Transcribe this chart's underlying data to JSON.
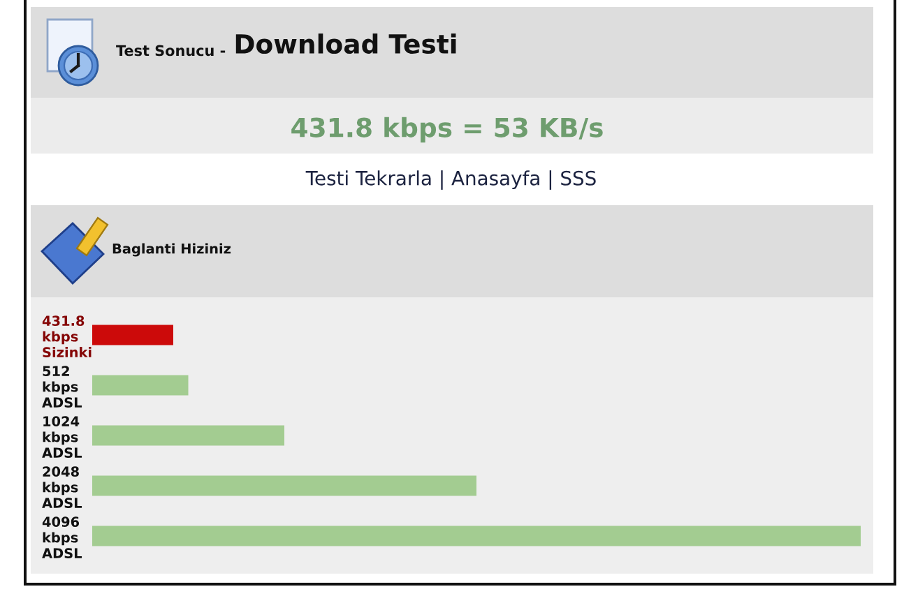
{
  "chart_data": {
    "type": "bar",
    "orientation": "horizontal",
    "title": "Download Testi",
    "subtitle": "Test Sonucu -",
    "annotations": [
      "431.8 kbps = 53 KB/s",
      "Testi Tekrarla | Anasayfa | SSS",
      "Baglanti Hiziniz"
    ],
    "categories": [
      "Sizinki",
      "ADSL",
      "ADSL",
      "ADSL",
      "ADSL"
    ],
    "values": [
      431.8,
      512,
      1024,
      2048,
      4096
    ],
    "value_labels": [
      "431.8 kbps",
      "512 kbps",
      "1024 kbps",
      "2048 kbps",
      "4096 kbps"
    ],
    "colors": [
      "#cc0a0a",
      "#a3cc91",
      "#a3cc91",
      "#a3cc91",
      "#a3cc91"
    ]
  }
}
